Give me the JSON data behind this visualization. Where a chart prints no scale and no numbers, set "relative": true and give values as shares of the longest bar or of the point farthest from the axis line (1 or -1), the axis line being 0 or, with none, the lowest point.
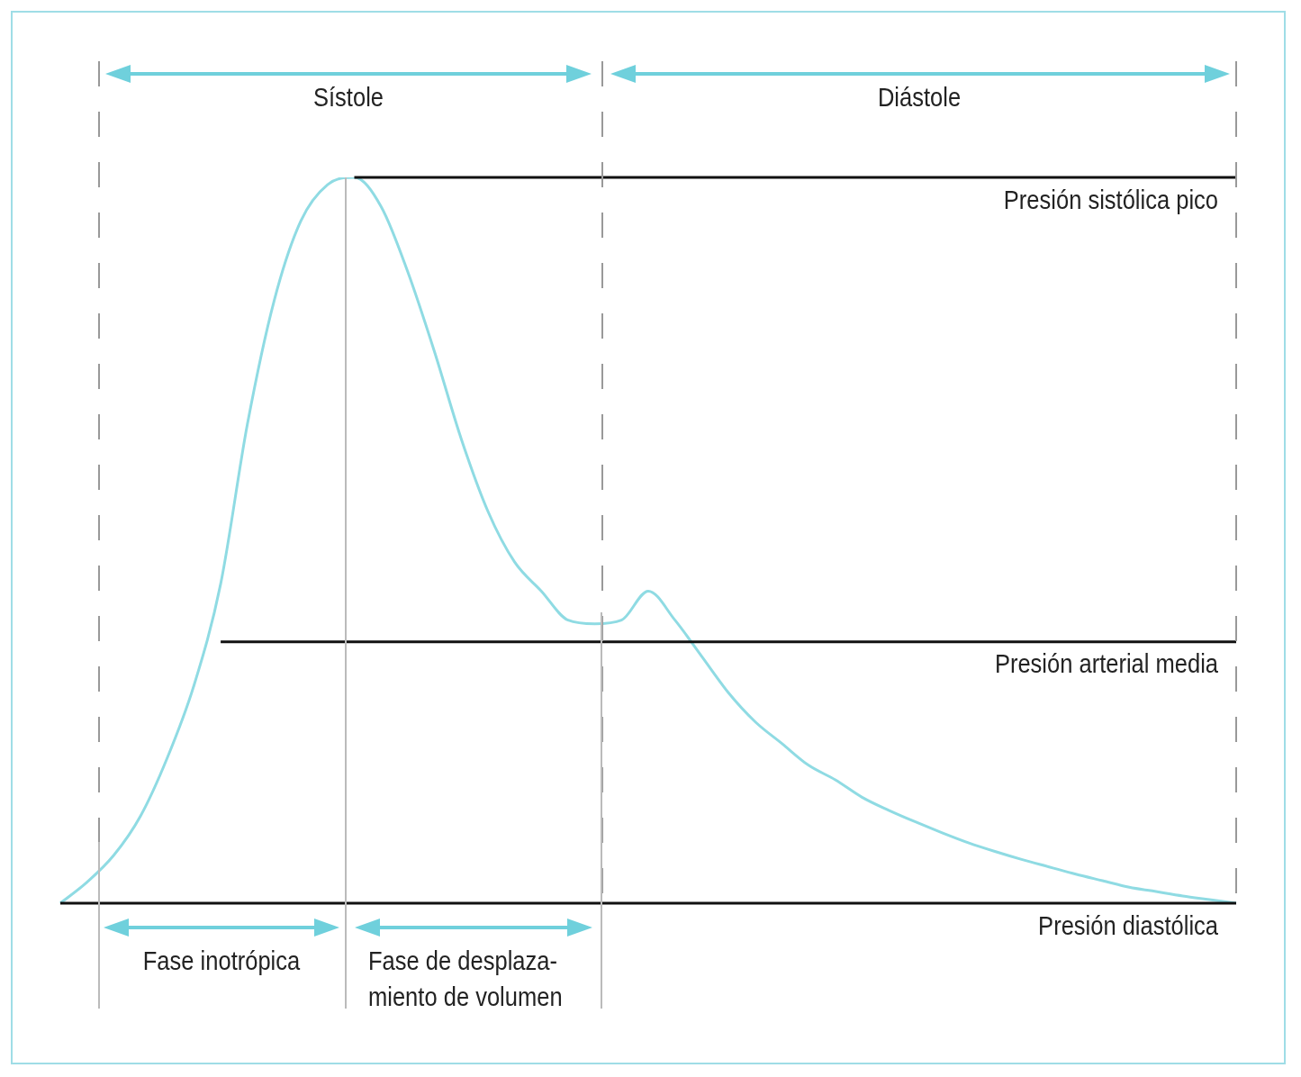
{
  "chart_data": {
    "type": "line",
    "relative": true,
    "legend": false,
    "marker": "none",
    "line_style": "solid",
    "categories": [
      null,
      null,
      null,
      null,
      null,
      null,
      null,
      null,
      null,
      null,
      null,
      null,
      null,
      null,
      null,
      null,
      null,
      null,
      null,
      null,
      null,
      null,
      null,
      null,
      null,
      null,
      null,
      null,
      null,
      null,
      null,
      null,
      null,
      null,
      null,
      null,
      null,
      null,
      null,
      null,
      null,
      null,
      null,
      null,
      null
    ],
    "series": [
      {
        "color": "#8fdbe3",
        "values": [
          0,
          0.029,
          0.066,
          0.12,
          0.2,
          0.3,
          0.44,
          0.66,
          0.83,
          0.94,
          0.99,
          1,
          0.96,
          0.87,
          0.76,
          0.64,
          0.54,
          0.47,
          0.43,
          0.39,
          0.385,
          0.39,
          0.43,
          0.39,
          0.34,
          0.29,
          0.25,
          0.22,
          0.19,
          0.17,
          0.146,
          0.128,
          0.112,
          0.097,
          0.083,
          0.071,
          0.06,
          0.05,
          0.04,
          0.031,
          0.022,
          0.016,
          0.01,
          0.005,
          0
        ]
      }
    ],
    "ref_lines": [
      {
        "axis": "y",
        "value": 1,
        "label": "Presión sistólica pico",
        "color": "#111111"
      },
      {
        "axis": "y",
        "value": 0.36,
        "label": "Presión arterial media",
        "color": "#111111"
      },
      {
        "axis": "y",
        "value": 0,
        "label": "Presión diastólica",
        "color": "#111111"
      }
    ],
    "annotations": [
      "Sístole",
      "Diástole",
      "Fase inotrópica",
      "Fase de desplaza-\nmiento de volumen"
    ]
  }
}
